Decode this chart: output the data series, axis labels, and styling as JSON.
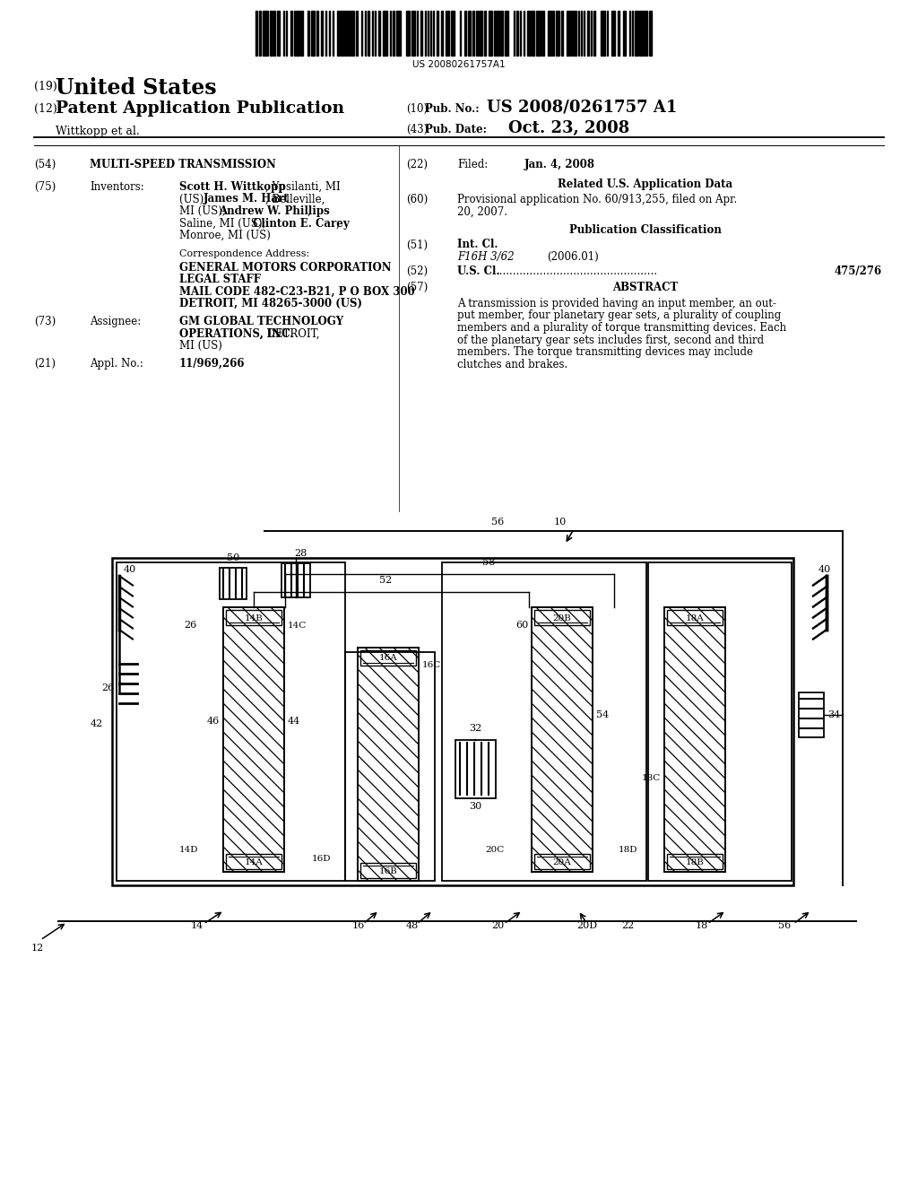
{
  "bg_color": "#ffffff",
  "barcode_text": "US 20080261757A1",
  "header": {
    "country_prefix": "(19)",
    "country": "United States",
    "pub_type_prefix": "(12)",
    "pub_type": "Patent Application Publication",
    "inventors_line": "Wittkopp et al.",
    "pub_no_prefix": "(10)",
    "pub_no_label": "Pub. No.:",
    "pub_no_value": "US 2008/0261757 A1",
    "pub_date_prefix": "(43)",
    "pub_date_label": "Pub. Date:",
    "pub_date_value": "Oct. 23, 2008"
  },
  "left_col": {
    "title_prefix": "(54)",
    "title": "MULTI-SPEED TRANSMISSION",
    "inv_prefix": "(75)",
    "inv_label": "Inventors:",
    "corr_label": "Correspondence Address:",
    "corr1": "GENERAL MOTORS CORPORATION",
    "corr2": "LEGAL STAFF",
    "corr3": "MAIL CODE 482-C23-B21, P O BOX 300",
    "corr4": "DETROIT, MI 48265-3000 (US)",
    "asgn_prefix": "(73)",
    "asgn_label": "Assignee:",
    "asgn1": "GM GLOBAL TECHNOLOGY",
    "asgn2b": "OPERATIONS, INC.",
    "asgn2r": ", DETROIT,",
    "asgn3": "MI (US)",
    "appl_prefix": "(21)",
    "appl_label": "Appl. No.:",
    "appl_value": "11/969,266"
  },
  "right_col": {
    "filed_prefix": "(22)",
    "filed_label": "Filed:",
    "filed_date": "Jan. 4, 2008",
    "related_title": "Related U.S. Application Data",
    "prov_prefix": "(60)",
    "prov1": "Provisional application No. 60/913,255, filed on Apr.",
    "prov2": "20, 2007.",
    "pub_class_title": "Publication Classification",
    "intcl_prefix": "(51)",
    "intcl_label": "Int. Cl.",
    "intcl_value": "F16H 3/62",
    "intcl_year": "(2006.01)",
    "uscl_prefix": "(52)",
    "uscl_label": "U.S. Cl.",
    "uscl_value": "475/276",
    "abstract_prefix": "(57)",
    "abstract_title": "ABSTRACT",
    "abstract": [
      "A transmission is provided having an input member, an out-",
      "put member, four planetary gear sets, a plurality of coupling",
      "members and a plurality of torque transmitting devices. Each",
      "of the planetary gear sets includes first, second and third",
      "members. The torque transmitting devices may include",
      "clutches and brakes."
    ]
  },
  "diag": {
    "ox": 65,
    "oy": 572,
    "scale": 1.0
  }
}
